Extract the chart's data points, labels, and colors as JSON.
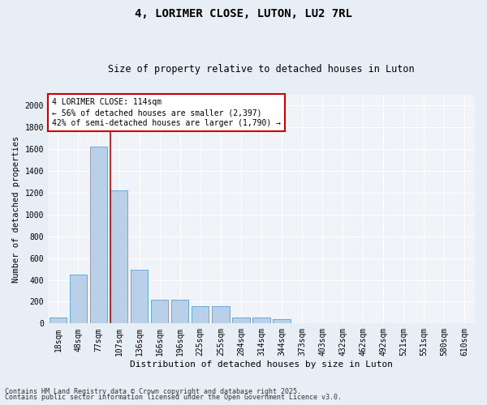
{
  "title1": "4, LORIMER CLOSE, LUTON, LU2 7RL",
  "title2": "Size of property relative to detached houses in Luton",
  "xlabel": "Distribution of detached houses by size in Luton",
  "ylabel": "Number of detached properties",
  "categories": [
    "18sqm",
    "48sqm",
    "77sqm",
    "107sqm",
    "136sqm",
    "166sqm",
    "196sqm",
    "225sqm",
    "255sqm",
    "284sqm",
    "314sqm",
    "344sqm",
    "373sqm",
    "403sqm",
    "432sqm",
    "462sqm",
    "492sqm",
    "521sqm",
    "551sqm",
    "580sqm",
    "610sqm"
  ],
  "values": [
    55,
    450,
    1620,
    1220,
    490,
    215,
    215,
    160,
    160,
    55,
    55,
    40,
    0,
    0,
    0,
    0,
    0,
    0,
    0,
    0,
    0
  ],
  "bar_color": "#bad0e8",
  "bar_edge_color": "#6aaad4",
  "vline_color": "#cc0000",
  "vline_x_index": 3,
  "annotation_line1": "4 LORIMER CLOSE: 114sqm",
  "annotation_line2": "← 56% of detached houses are smaller (2,397)",
  "annotation_line3": "42% of semi-detached houses are larger (1,790) →",
  "annotation_box_color": "#cc0000",
  "ylim": [
    0,
    2100
  ],
  "yticks": [
    0,
    200,
    400,
    600,
    800,
    1000,
    1200,
    1400,
    1600,
    1800,
    2000
  ],
  "footnote1": "Contains HM Land Registry data © Crown copyright and database right 2025.",
  "footnote2": "Contains public sector information licensed under the Open Government Licence v3.0.",
  "bg_color": "#e8eef5",
  "plot_bg_color": "#f0f4f9",
  "grid_color": "#ffffff",
  "title1_fontsize": 10,
  "title2_fontsize": 8.5,
  "xlabel_fontsize": 8,
  "ylabel_fontsize": 7.5,
  "tick_fontsize": 7,
  "annot_fontsize": 7,
  "footnote_fontsize": 6
}
